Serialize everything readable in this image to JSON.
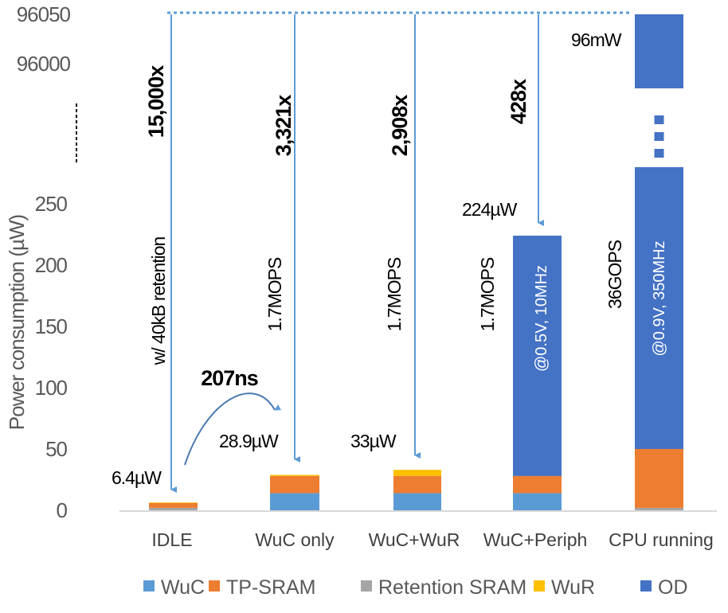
{
  "chart_data": {
    "type": "bar",
    "stacked": true,
    "broken_y_axis": true,
    "ylabel": "Power consumption (µW)",
    "y_ticks_lower": [
      "0",
      "50",
      "100",
      "150",
      "200",
      "250"
    ],
    "y_ticks_upper": [
      "96000",
      "96050"
    ],
    "ylim_lower": [
      0,
      280
    ],
    "ylim_upper": [
      95975,
      96050
    ],
    "grid": false,
    "legend_position": "bottom",
    "categories": [
      "IDLE",
      "WuC only",
      "WuC+WuR",
      "WuC+Periph",
      "CPU running"
    ],
    "series": [
      {
        "name": "WuC",
        "color": "#5B9BD5",
        "values": [
          0,
          14,
          14,
          14,
          0
        ]
      },
      {
        "name": "TP-SRAM",
        "color": "#ED7D31",
        "values": [
          3.9,
          14,
          14,
          14,
          48
        ]
      },
      {
        "name": "Retention SRAM",
        "color": "#A5A5A5",
        "values": [
          2,
          0,
          0,
          0,
          2
        ]
      },
      {
        "name": "WuR",
        "color": "#FFC000",
        "values": [
          0.5,
          0.9,
          5,
          0,
          0
        ]
      },
      {
        "name": "OD",
        "color": "#4472C4",
        "values": [
          0,
          0,
          0,
          196,
          95950
        ]
      }
    ],
    "totals_labels": [
      "6.4µW",
      "28.9µW",
      "33µW",
      "224µW",
      "96mW"
    ],
    "ratio_labels": [
      "15,000x",
      "3,321x",
      "2,908x",
      "428x"
    ],
    "annotations": {
      "idle_note": "w/ 40kB retention",
      "mops_1": "1.7MOPS",
      "mops_2": "1.7MOPS",
      "mops_3": "1.7MOPS",
      "periph_op": "@0.5V, 10MHz",
      "cpu_perf": "36GOPS",
      "cpu_op": "@0.9V, 350MHz",
      "wakeup_time": "207ns"
    },
    "arrow_color": "#5B9BD5"
  }
}
